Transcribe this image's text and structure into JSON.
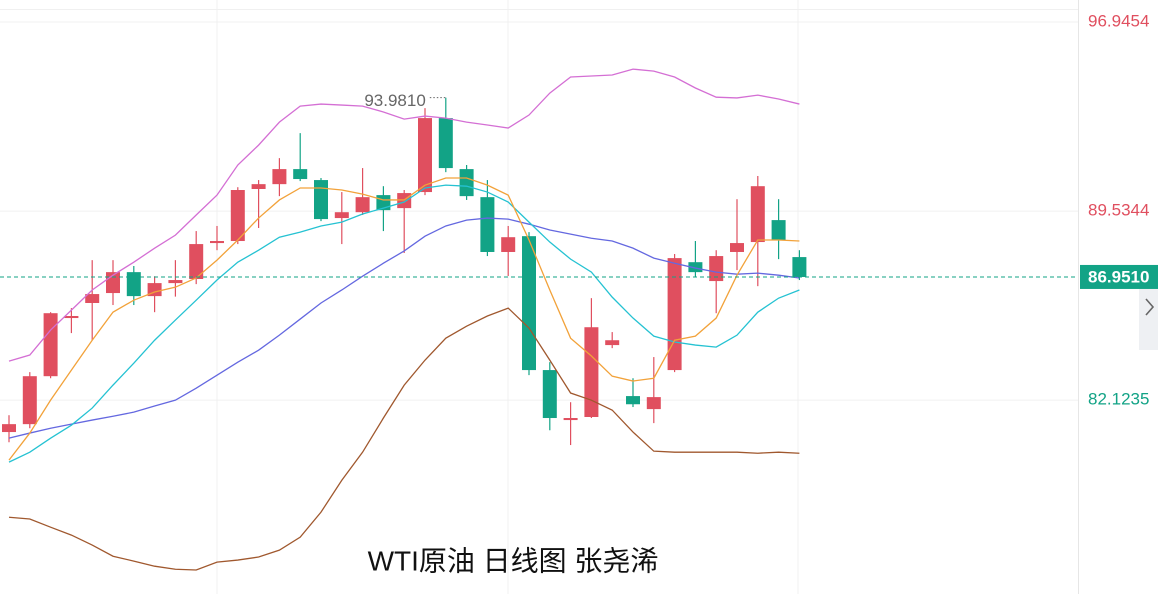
{
  "chart_data": {
    "type": "candlestick",
    "title": "WTI原油  日线图  张尧浠",
    "up_color": "#e04f5f",
    "down_color": "#12a386",
    "ylim": [
      74.52,
      97.81
    ],
    "yticks": [
      96.9454,
      89.5344,
      82.1235
    ],
    "ytick_colors": [
      "#e04f5f",
      "#e04f5f",
      "#12a386"
    ],
    "grid": true,
    "last_price": {
      "value": 86.951,
      "label": "86.9510"
    },
    "high_label": {
      "value": 93.981,
      "label": "93.9810"
    },
    "open": [
      80.87,
      81.18,
      83.06,
      85.34,
      85.93,
      86.32,
      87.14,
      86.2,
      86.71,
      86.87,
      88.28,
      88.36,
      90.4,
      90.59,
      91.18,
      90.75,
      89.26,
      89.49,
      90.16,
      89.65,
      90.28,
      93.18,
      91.18,
      90.08,
      87.93,
      88.55,
      83.3,
      81.34,
      81.46,
      84.28,
      82.28,
      81.77,
      83.3,
      87.53,
      86.79,
      87.93,
      88.32,
      89.18,
      87.73
    ],
    "high": [
      81.53,
      83.22,
      85.57,
      85.73,
      87.61,
      87.61,
      87.38,
      86.98,
      87.61,
      88.75,
      88.95,
      90.47,
      90.75,
      91.61,
      92.59,
      90.83,
      90.28,
      91.22,
      90.51,
      90.36,
      93.57,
      93.98,
      91.34,
      90.75,
      88.95,
      88.71,
      83.61,
      82.04,
      86.12,
      84.79,
      82.98,
      83.81,
      87.85,
      88.36,
      88.0,
      90.0,
      90.91,
      90.0,
      88.0
    ],
    "low": [
      80.47,
      81.02,
      82.98,
      84.75,
      84.47,
      85.85,
      85.85,
      85.57,
      86.18,
      86.67,
      88.0,
      88.24,
      88.87,
      90.12,
      90.71,
      89.14,
      88.24,
      89.38,
      88.75,
      87.89,
      90.16,
      91.06,
      89.97,
      87.77,
      86.99,
      83.1,
      80.94,
      80.36,
      81.42,
      84.16,
      81.85,
      81.22,
      83.22,
      86.95,
      85.53,
      87.22,
      86.59,
      87.65,
      86.83
    ],
    "close": [
      81.18,
      83.06,
      85.53,
      85.42,
      86.28,
      87.14,
      86.2,
      86.71,
      86.83,
      88.24,
      88.36,
      90.36,
      90.59,
      91.18,
      90.79,
      89.22,
      89.49,
      90.08,
      89.57,
      90.24,
      93.18,
      91.22,
      90.12,
      87.93,
      88.51,
      83.3,
      81.42,
      81.42,
      84.98,
      84.47,
      81.96,
      82.24,
      87.69,
      87.14,
      87.77,
      88.28,
      90.51,
      88.4,
      86.95
    ],
    "series": [
      {
        "color": "#d46fd4",
        "values": [
          83.65,
          83.89,
          84.87,
          85.65,
          86.44,
          87.02,
          87.53,
          88.08,
          88.59,
          89.38,
          90.16,
          91.34,
          92.12,
          93.02,
          93.65,
          93.73,
          93.69,
          93.65,
          93.42,
          93.14,
          93.26,
          93.18,
          93.02,
          92.91,
          92.79,
          93.3,
          94.16,
          94.79,
          94.83,
          94.87,
          95.1,
          95.02,
          94.79,
          94.36,
          94.0,
          93.97,
          94.08,
          93.93,
          93.73
        ]
      },
      {
        "color": "#a0582e",
        "values": [
          77.53,
          77.46,
          77.14,
          76.83,
          76.44,
          76.0,
          75.81,
          75.61,
          75.49,
          75.46,
          75.77,
          75.85,
          75.97,
          76.24,
          76.75,
          77.73,
          78.98,
          80.08,
          81.42,
          82.71,
          83.69,
          84.55,
          85.02,
          85.42,
          85.73,
          84.95,
          83.69,
          82.4,
          82.12,
          81.73,
          80.87,
          80.12,
          80.08,
          80.08,
          80.08,
          80.08,
          80.04,
          80.08,
          80.04
        ]
      },
      {
        "color": "#6468e0",
        "values": [
          80.63,
          80.83,
          81.02,
          81.18,
          81.34,
          81.49,
          81.65,
          81.89,
          82.12,
          82.59,
          83.1,
          83.61,
          84.08,
          84.67,
          85.3,
          85.93,
          86.44,
          86.98,
          87.49,
          87.97,
          88.55,
          88.95,
          89.18,
          89.26,
          89.22,
          89.02,
          88.79,
          88.63,
          88.47,
          88.36,
          88.08,
          87.69,
          87.49,
          87.3,
          87.14,
          87.06,
          87.1,
          87.02,
          86.91
        ]
      },
      {
        "color": "#25c2d2",
        "values": [
          79.69,
          80.08,
          80.63,
          81.14,
          81.81,
          82.71,
          83.57,
          84.47,
          85.26,
          86.04,
          86.83,
          87.53,
          88.0,
          88.51,
          88.71,
          88.95,
          89.1,
          89.42,
          89.65,
          89.89,
          90.44,
          90.55,
          90.51,
          90.28,
          89.89,
          89.1,
          88.32,
          87.65,
          87.14,
          86.16,
          85.34,
          84.63,
          84.4,
          84.28,
          84.2,
          84.67,
          85.57,
          86.12,
          86.44
        ]
      },
      {
        "color": "#f2a23a",
        "values": [
          79.77,
          80.83,
          82.12,
          83.3,
          84.47,
          85.57,
          86.04,
          86.36,
          86.55,
          86.91,
          87.61,
          88.4,
          89.26,
          89.97,
          90.44,
          90.44,
          90.36,
          90.2,
          89.97,
          89.97,
          90.55,
          90.83,
          90.83,
          90.55,
          90.16,
          88.4,
          86.44,
          84.55,
          83.85,
          83.06,
          82.87,
          82.98,
          84.47,
          84.63,
          85.34,
          87.02,
          88.4,
          88.4,
          88.36
        ]
      }
    ]
  }
}
